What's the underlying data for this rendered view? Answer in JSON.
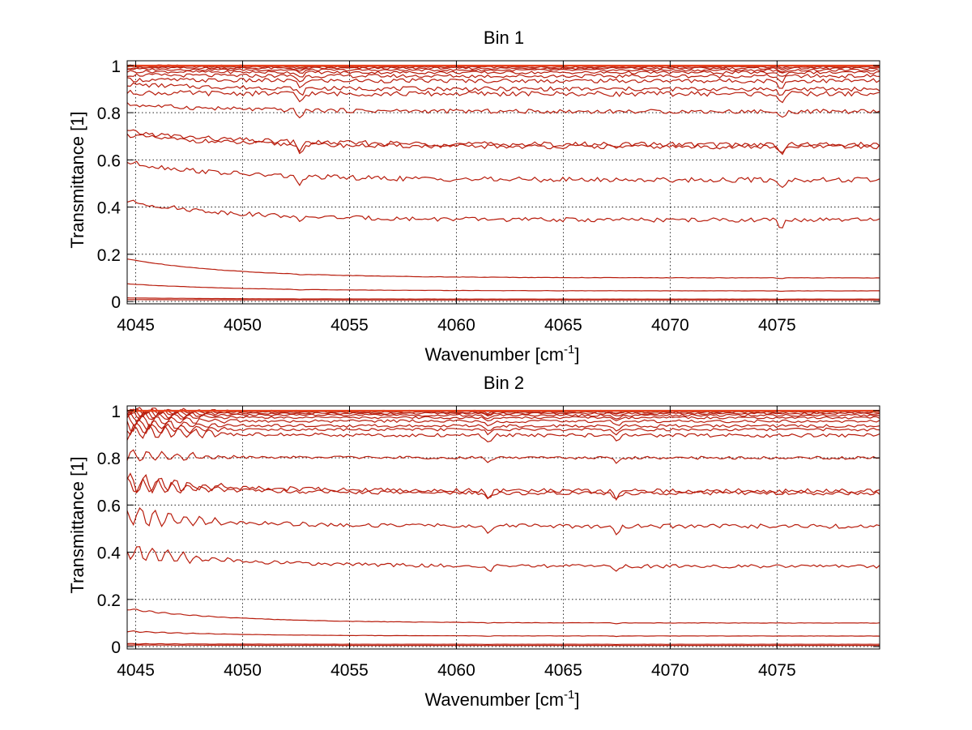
{
  "figure": {
    "background": "#ffffff",
    "panels": [
      {
        "title": "Bin 1",
        "xlabel": {
          "text": "Wavenumber [cm",
          "sup": "-1",
          "close": "]"
        },
        "ylabel": "Transmittance [1]"
      },
      {
        "title": "Bin 2",
        "xlabel": {
          "text": "Wavenumber [cm",
          "sup": "-1",
          "close": "]"
        },
        "ylabel": "Transmittance [1]"
      }
    ]
  },
  "chart_data": [
    {
      "type": "line",
      "title": "Bin 1",
      "xlabel": "Wavenumber [cm-1]",
      "ylabel": "Transmittance [1]",
      "xlim": [
        4044.6,
        4079.8
      ],
      "ylim": [
        -0.01,
        1.02
      ],
      "xticks": [
        4045,
        4050,
        4055,
        4060,
        4065,
        4070,
        4075
      ],
      "xticklabels": [
        "4045",
        "4050",
        "4055",
        "4060",
        "4065",
        "4070",
        "4075"
      ],
      "yticks": [
        0,
        0.2,
        0.4,
        0.6,
        0.8,
        1
      ],
      "yticklabels": [
        "0",
        "0.2",
        "0.4",
        "0.6",
        "0.8",
        "1"
      ],
      "grid": true,
      "grid_style": "dotted",
      "line_color": "#b81c0c",
      "top_cluster_colors": [
        "#e8401c",
        "#f0a020",
        "#3cb4e0",
        "#2060d0",
        "#9acd32"
      ],
      "absorption_lines": [
        4052.7,
        4075.2
      ],
      "series": [
        {
          "start": 1.0,
          "end": 0.998,
          "depth": 0.01
        },
        {
          "start": 0.995,
          "end": 0.993,
          "depth": 0.01
        },
        {
          "start": 0.99,
          "end": 0.988,
          "depth": 0.015
        },
        {
          "start": 0.985,
          "end": 0.98,
          "depth": 0.015
        },
        {
          "start": 0.975,
          "end": 0.97,
          "depth": 0.02
        },
        {
          "start": 0.96,
          "end": 0.955,
          "depth": 0.025
        },
        {
          "start": 0.94,
          "end": 0.935,
          "depth": 0.03
        },
        {
          "start": 0.92,
          "end": 0.9,
          "depth": 0.03
        },
        {
          "start": 0.885,
          "end": 0.88,
          "depth": 0.035
        },
        {
          "start": 0.835,
          "end": 0.805,
          "depth": 0.03
        },
        {
          "start": 0.72,
          "end": 0.665,
          "depth": 0.035
        },
        {
          "start": 0.705,
          "end": 0.655,
          "depth": 0.03
        },
        {
          "start": 0.59,
          "end": 0.515,
          "depth": 0.035
        },
        {
          "start": 0.425,
          "end": 0.345,
          "depth": 0.03
        },
        {
          "start": 0.18,
          "end": 0.1,
          "depth": 0.003
        },
        {
          "start": 0.075,
          "end": 0.045,
          "depth": 0.002
        },
        {
          "start": 0.015,
          "end": 0.01,
          "depth": 0.001
        },
        {
          "start": 0.008,
          "end": 0.006,
          "depth": 0.0
        }
      ]
    },
    {
      "type": "line",
      "title": "Bin 2",
      "xlabel": "Wavenumber [cm-1]",
      "ylabel": "Transmittance [1]",
      "xlim": [
        4044.6,
        4079.8
      ],
      "ylim": [
        -0.01,
        1.02
      ],
      "xticks": [
        4045,
        4050,
        4055,
        4060,
        4065,
        4070,
        4075
      ],
      "xticklabels": [
        "4045",
        "4050",
        "4055",
        "4060",
        "4065",
        "4070",
        "4075"
      ],
      "yticks": [
        0,
        0.2,
        0.4,
        0.6,
        0.8,
        1
      ],
      "yticklabels": [
        "0",
        "0.2",
        "0.4",
        "0.6",
        "0.8",
        "1"
      ],
      "grid": true,
      "grid_style": "dotted",
      "line_color": "#b81c0c",
      "top_cluster_colors": [
        "#e8401c",
        "#f0a020",
        "#3cb4e0",
        "#2060d0",
        "#9acd32"
      ],
      "absorption_lines": [
        4061.5,
        4067.5
      ],
      "series": [
        {
          "start": 1.0,
          "end": 0.998,
          "depth": 0.01
        },
        {
          "start": 0.995,
          "end": 0.993,
          "depth": 0.01
        },
        {
          "start": 0.99,
          "end": 0.988,
          "depth": 0.012
        },
        {
          "start": 0.985,
          "end": 0.98,
          "depth": 0.015
        },
        {
          "start": 0.975,
          "end": 0.97,
          "depth": 0.015
        },
        {
          "start": 0.96,
          "end": 0.955,
          "depth": 0.02
        },
        {
          "start": 0.94,
          "end": 0.935,
          "depth": 0.02
        },
        {
          "start": 0.925,
          "end": 0.92,
          "depth": 0.02
        },
        {
          "start": 0.91,
          "end": 0.895,
          "depth": 0.025
        },
        {
          "start": 0.81,
          "end": 0.8,
          "depth": 0.02
        },
        {
          "start": 0.7,
          "end": 0.66,
          "depth": 0.03
        },
        {
          "start": 0.685,
          "end": 0.65,
          "depth": 0.025
        },
        {
          "start": 0.555,
          "end": 0.51,
          "depth": 0.03
        },
        {
          "start": 0.405,
          "end": 0.34,
          "depth": 0.025
        },
        {
          "start": 0.16,
          "end": 0.1,
          "depth": 0.003
        },
        {
          "start": 0.065,
          "end": 0.045,
          "depth": 0.002
        },
        {
          "start": 0.012,
          "end": 0.01,
          "depth": 0.001
        },
        {
          "start": 0.007,
          "end": 0.005,
          "depth": 0.0
        }
      ]
    }
  ]
}
